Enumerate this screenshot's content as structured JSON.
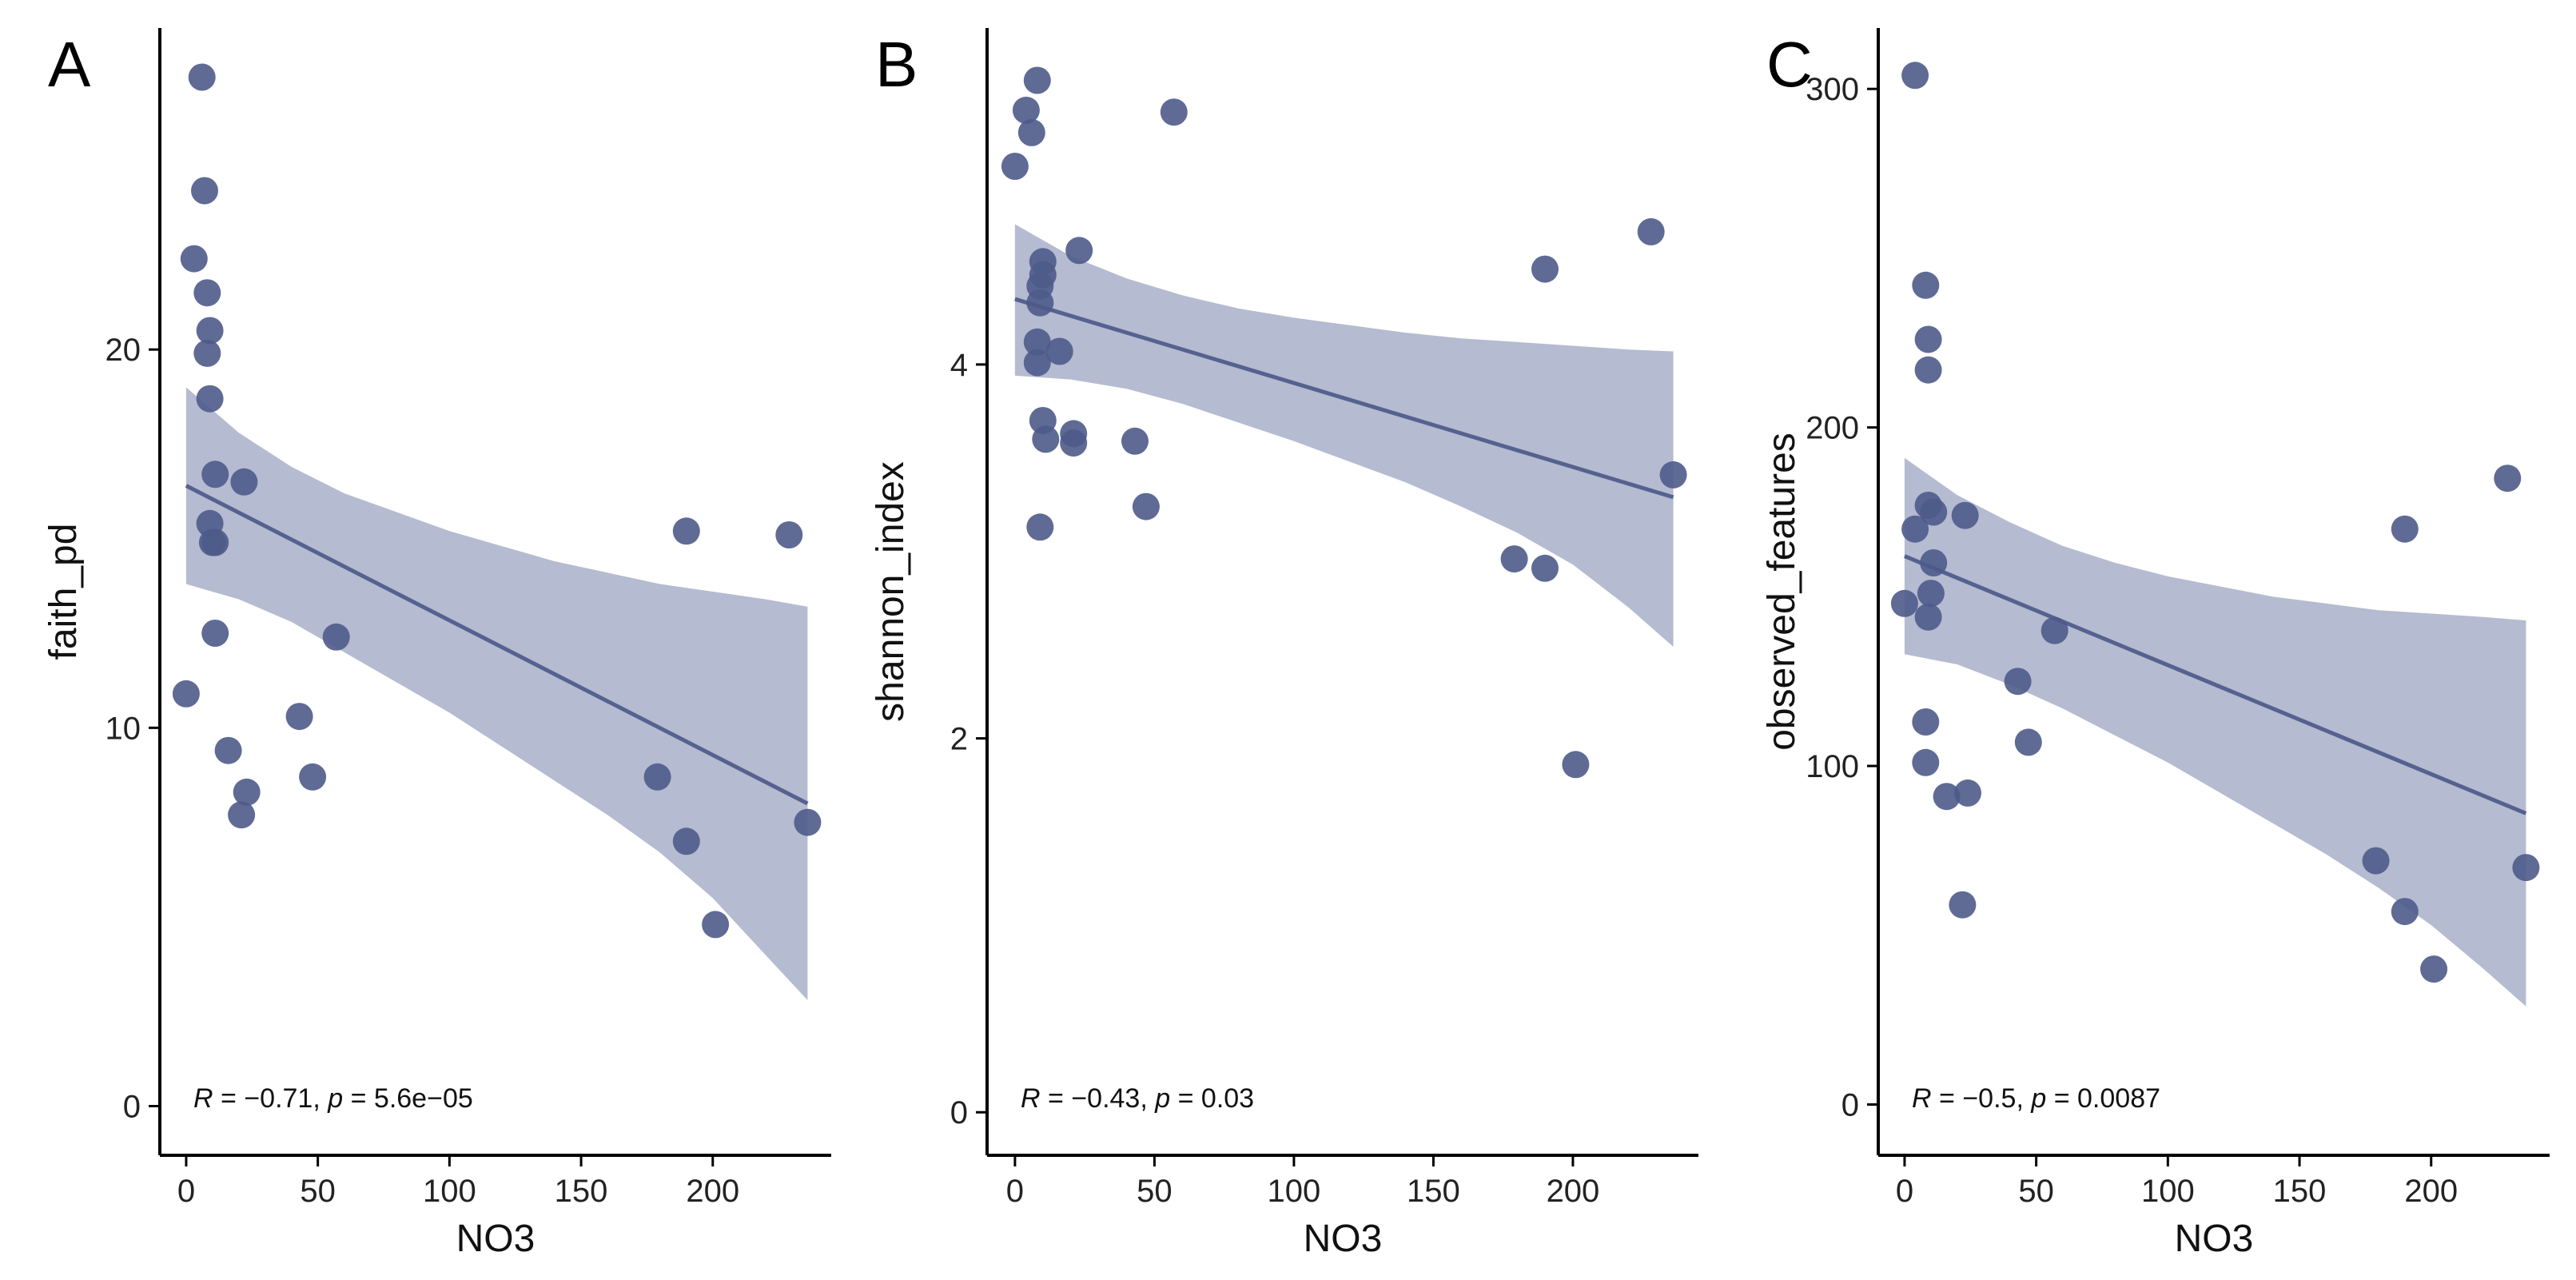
{
  "colors": {
    "point": "#4e5b8a",
    "band": "#8891b3",
    "line": "#55628f",
    "axis": "#000000"
  },
  "chart_data": [
    {
      "type": "scatter",
      "panel": "A",
      "xlabel": "NO3",
      "ylabel": "faith_pd",
      "xlim": [
        -10,
        245
      ],
      "ylim": [
        -1.3,
        28.5
      ],
      "xticks": [
        0,
        50,
        100,
        150,
        200
      ],
      "yticks": [
        0,
        10,
        20
      ],
      "grid": false,
      "stat_R": "−0.71",
      "stat_p": "5.6e−05",
      "stat_parts": [
        "R",
        " = ",
        "−0.71",
        ", ",
        "p",
        " = ",
        "5.6e−05"
      ],
      "points": [
        {
          "x": 0,
          "y": 10.9
        },
        {
          "x": 3,
          "y": 22.4
        },
        {
          "x": 6,
          "y": 27.2
        },
        {
          "x": 7,
          "y": 24.2
        },
        {
          "x": 8,
          "y": 21.5
        },
        {
          "x": 8,
          "y": 19.9
        },
        {
          "x": 9,
          "y": 20.5
        },
        {
          "x": 9,
          "y": 18.7
        },
        {
          "x": 9,
          "y": 15.4
        },
        {
          "x": 10,
          "y": 14.9
        },
        {
          "x": 11,
          "y": 16.7
        },
        {
          "x": 11,
          "y": 12.5
        },
        {
          "x": 11,
          "y": 14.9
        },
        {
          "x": 16,
          "y": 9.4
        },
        {
          "x": 21,
          "y": 7.7
        },
        {
          "x": 22,
          "y": 16.5
        },
        {
          "x": 23,
          "y": 8.3
        },
        {
          "x": 43,
          "y": 10.3
        },
        {
          "x": 48,
          "y": 8.7
        },
        {
          "x": 57,
          "y": 12.4
        },
        {
          "x": 179,
          "y": 8.7
        },
        {
          "x": 190,
          "y": 15.2
        },
        {
          "x": 190,
          "y": 7.0
        },
        {
          "x": 201,
          "y": 4.8
        },
        {
          "x": 229,
          "y": 15.1
        },
        {
          "x": 236,
          "y": 7.5
        }
      ],
      "fit": {
        "x": [
          0,
          236
        ],
        "y": [
          16.4,
          8.0
        ]
      },
      "band": {
        "x": [
          0,
          20,
          40,
          60,
          80,
          100,
          120,
          140,
          160,
          180,
          200,
          220,
          236
        ],
        "upper": [
          19.0,
          17.8,
          16.9,
          16.2,
          15.7,
          15.2,
          14.8,
          14.4,
          14.1,
          13.8,
          13.6,
          13.4,
          13.2
        ],
        "lower": [
          13.8,
          13.4,
          12.8,
          12.0,
          11.2,
          10.4,
          9.5,
          8.6,
          7.7,
          6.7,
          5.5,
          4.0,
          2.8
        ]
      }
    },
    {
      "type": "scatter",
      "panel": "B",
      "xlabel": "NO3",
      "ylabel": "shannon_index",
      "xlim": [
        -10,
        245
      ],
      "ylim": [
        -0.23,
        5.8
      ],
      "xticks": [
        0,
        50,
        100,
        150,
        200
      ],
      "yticks": [
        0,
        2,
        4
      ],
      "grid": false,
      "stat_R": "−0.43",
      "stat_p": "0.03",
      "stat_parts": [
        "R",
        " = ",
        "−0.43",
        ", ",
        "p",
        " = ",
        "0.03"
      ],
      "points": [
        {
          "x": 0,
          "y": 5.06
        },
        {
          "x": 4,
          "y": 5.36
        },
        {
          "x": 6,
          "y": 5.24
        },
        {
          "x": 8,
          "y": 5.52
        },
        {
          "x": 8,
          "y": 4.12
        },
        {
          "x": 8,
          "y": 4.01
        },
        {
          "x": 9,
          "y": 3.13
        },
        {
          "x": 9,
          "y": 4.33
        },
        {
          "x": 9,
          "y": 4.42
        },
        {
          "x": 10,
          "y": 4.55
        },
        {
          "x": 10,
          "y": 4.48
        },
        {
          "x": 10,
          "y": 3.7
        },
        {
          "x": 11,
          "y": 3.6
        },
        {
          "x": 16,
          "y": 4.07
        },
        {
          "x": 21,
          "y": 3.63
        },
        {
          "x": 21,
          "y": 3.58
        },
        {
          "x": 23,
          "y": 4.61
        },
        {
          "x": 43,
          "y": 3.59
        },
        {
          "x": 47,
          "y": 3.24
        },
        {
          "x": 57,
          "y": 5.35
        },
        {
          "x": 179,
          "y": 2.96
        },
        {
          "x": 190,
          "y": 4.51
        },
        {
          "x": 190,
          "y": 2.91
        },
        {
          "x": 201,
          "y": 1.86
        },
        {
          "x": 228,
          "y": 4.71
        },
        {
          "x": 236,
          "y": 3.41
        }
      ],
      "fit": {
        "x": [
          0,
          236
        ],
        "y": [
          4.35,
          3.29
        ]
      },
      "band": {
        "x": [
          0,
          20,
          40,
          60,
          80,
          100,
          120,
          140,
          160,
          180,
          200,
          220,
          236
        ],
        "upper": [
          4.75,
          4.58,
          4.46,
          4.37,
          4.3,
          4.25,
          4.21,
          4.17,
          4.14,
          4.12,
          4.1,
          4.08,
          4.07
        ],
        "lower": [
          3.94,
          3.92,
          3.87,
          3.79,
          3.69,
          3.59,
          3.48,
          3.37,
          3.24,
          3.1,
          2.93,
          2.7,
          2.49
        ]
      }
    },
    {
      "type": "scatter",
      "panel": "C",
      "xlabel": "NO3",
      "ylabel": "observed_features",
      "xlim": [
        -10,
        245
      ],
      "ylim": [
        -15,
        318
      ],
      "xticks": [
        0,
        50,
        100,
        150,
        200
      ],
      "yticks": [
        0,
        100,
        200,
        300
      ],
      "grid": false,
      "stat_R": "−0.5",
      "stat_p": "0.0087",
      "stat_parts": [
        "R",
        " = ",
        "−0.5",
        ", ",
        "p",
        " = ",
        "0.0087"
      ],
      "points": [
        {
          "x": 0,
          "y": 148
        },
        {
          "x": 4,
          "y": 170
        },
        {
          "x": 4,
          "y": 304
        },
        {
          "x": 8,
          "y": 242
        },
        {
          "x": 8,
          "y": 113
        },
        {
          "x": 8,
          "y": 101
        },
        {
          "x": 9,
          "y": 226
        },
        {
          "x": 9,
          "y": 217
        },
        {
          "x": 9,
          "y": 177
        },
        {
          "x": 9,
          "y": 144
        },
        {
          "x": 10,
          "y": 151
        },
        {
          "x": 11,
          "y": 160
        },
        {
          "x": 11,
          "y": 175
        },
        {
          "x": 16,
          "y": 91
        },
        {
          "x": 22,
          "y": 59
        },
        {
          "x": 23,
          "y": 174
        },
        {
          "x": 24,
          "y": 92
        },
        {
          "x": 43,
          "y": 125
        },
        {
          "x": 47,
          "y": 107
        },
        {
          "x": 57,
          "y": 140
        },
        {
          "x": 179,
          "y": 72
        },
        {
          "x": 190,
          "y": 170
        },
        {
          "x": 190,
          "y": 57
        },
        {
          "x": 201,
          "y": 40
        },
        {
          "x": 229,
          "y": 185
        },
        {
          "x": 236,
          "y": 70
        }
      ],
      "fit": {
        "x": [
          0,
          236
        ],
        "y": [
          162,
          86
        ]
      },
      "band": {
        "x": [
          0,
          20,
          40,
          60,
          80,
          100,
          120,
          140,
          160,
          180,
          200,
          220,
          236
        ],
        "upper": [
          191,
          180,
          172,
          165,
          160,
          156,
          153,
          150,
          148,
          146,
          145,
          144,
          143
        ],
        "lower": [
          133,
          130,
          124,
          117,
          109,
          101,
          92,
          83,
          74,
          64,
          53,
          40,
          29
        ]
      }
    }
  ]
}
